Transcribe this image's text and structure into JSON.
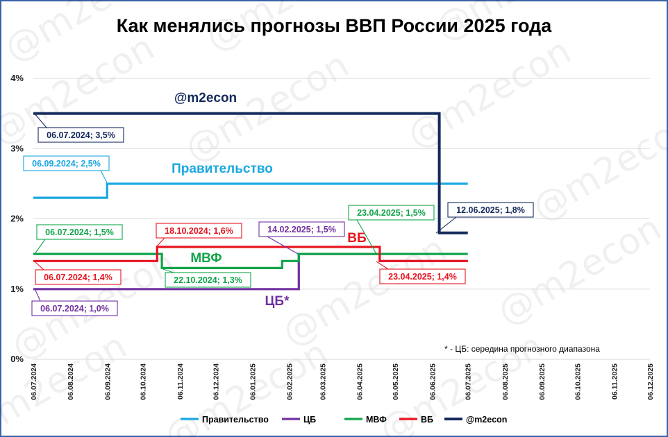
{
  "chart_data": {
    "type": "line",
    "step": true,
    "title": "Как менялись прогнозы ВВП России 2025 года",
    "y_axis": {
      "ylim": [
        0,
        4
      ],
      "tick_values": [
        0,
        1,
        2,
        3,
        4
      ],
      "tick_labels": [
        "0%",
        "1%",
        "2%",
        "3%",
        "4%"
      ],
      "grid": true
    },
    "x_axis": {
      "range": [
        "2024-07-06",
        "2025-12-06"
      ],
      "tick_values": [
        "2024-07-06",
        "2024-08-06",
        "2024-09-06",
        "2024-10-06",
        "2024-11-06",
        "2024-12-06",
        "2025-01-06",
        "2025-02-06",
        "2025-03-06",
        "2025-04-06",
        "2025-05-06",
        "2025-06-06",
        "2025-07-06",
        "2025-08-06",
        "2025-09-06",
        "2025-10-06",
        "2025-11-06",
        "2025-12-06"
      ],
      "tick_labels": [
        "06.07.2024",
        "06.08.2024",
        "06.09.2024",
        "06.10.2024",
        "06.11.2024",
        "06.12.2024",
        "06.01.2025",
        "06.02.2025",
        "06.03.2025",
        "06.04.2025",
        "06.05.2025",
        "06.06.2025",
        "06.07.2025",
        "06.08.2025",
        "06.09.2025",
        "06.10.2025",
        "06.11.2025",
        "06.12.2025"
      ],
      "label_orientation": "vertical"
    },
    "series": [
      {
        "name": "Правительство",
        "color": "#1aa7e0",
        "points": [
          [
            "2024-07-06",
            2.3
          ],
          [
            "2024-09-06",
            2.3
          ],
          [
            "2024-09-06",
            2.5
          ],
          [
            "2025-07-06",
            2.5
          ]
        ]
      },
      {
        "name": "ЦБ",
        "label": "ЦБ*",
        "color": "#7030a0",
        "points": [
          [
            "2024-07-06",
            1.0
          ],
          [
            "2025-02-14",
            1.0
          ],
          [
            "2025-02-14",
            1.5
          ],
          [
            "2025-04-23",
            1.5
          ],
          [
            "2025-04-23",
            1.4
          ],
          [
            "2025-07-06",
            1.4
          ]
        ]
      },
      {
        "name": "МВФ",
        "color": "#11a44a",
        "points": [
          [
            "2024-07-06",
            1.5
          ],
          [
            "2024-10-22",
            1.5
          ],
          [
            "2024-10-22",
            1.3
          ],
          [
            "2025-01-31",
            1.3
          ],
          [
            "2025-01-31",
            1.4
          ],
          [
            "2025-02-14",
            1.4
          ],
          [
            "2025-02-14",
            1.5
          ],
          [
            "2025-04-23",
            1.5
          ],
          [
            "2025-07-06",
            1.5
          ]
        ]
      },
      {
        "name": "ВБ",
        "color": "#e8141e",
        "points": [
          [
            "2024-07-06",
            1.4
          ],
          [
            "2024-10-18",
            1.4
          ],
          [
            "2024-10-18",
            1.6
          ],
          [
            "2025-04-23",
            1.6
          ],
          [
            "2025-04-23",
            1.4
          ],
          [
            "2025-07-06",
            1.4
          ]
        ]
      },
      {
        "name": "@m2econ",
        "color": "#142a5c",
        "points": [
          [
            "2024-07-06",
            3.5
          ],
          [
            "2025-06-12",
            3.5
          ],
          [
            "2025-06-12",
            1.8
          ],
          [
            "2025-07-06",
            1.8
          ]
        ]
      }
    ],
    "annotations": [
      {
        "text": "06.07.2024; 3,5%",
        "color": "#142a5c"
      },
      {
        "text": "06.09.2024; 2,5%",
        "color": "#1aa7e0"
      },
      {
        "text": "06.07.2024; 1,5%",
        "color": "#11a44a"
      },
      {
        "text": "18.10.2024; 1,6%",
        "color": "#e8141e"
      },
      {
        "text": "14.02.2025; 1,5%",
        "color": "#7030a0"
      },
      {
        "text": "23.04.2025; 1,5%",
        "color": "#11a44a"
      },
      {
        "text": "12.06.2025; 1,8%",
        "color": "#142a5c"
      },
      {
        "text": "06.07.2024; 1,4%",
        "color": "#e8141e"
      },
      {
        "text": "22.10.2024; 1,3%",
        "color": "#11a44a"
      },
      {
        "text": "23.04.2025; 1,4%",
        "color": "#e8141e"
      },
      {
        "text": "06.07.2024; 1,0%",
        "color": "#7030a0"
      }
    ],
    "series_labels": [
      {
        "text": "@m2econ",
        "color": "#142a5c"
      },
      {
        "text": "Правительство",
        "color": "#1aa7e0"
      },
      {
        "text": "ВБ",
        "color": "#e8141e"
      },
      {
        "text": "МВФ",
        "color": "#11a44a"
      },
      {
        "text": "ЦБ*",
        "color": "#7030a0"
      }
    ],
    "note": "* - ЦБ: середина прогнозного диапазона",
    "legend": {
      "placement": "bottom",
      "entries": [
        "Правительство",
        "ЦБ",
        "МВФ",
        "ВБ",
        "@m2econ"
      ]
    },
    "watermark": "@m2econ"
  }
}
